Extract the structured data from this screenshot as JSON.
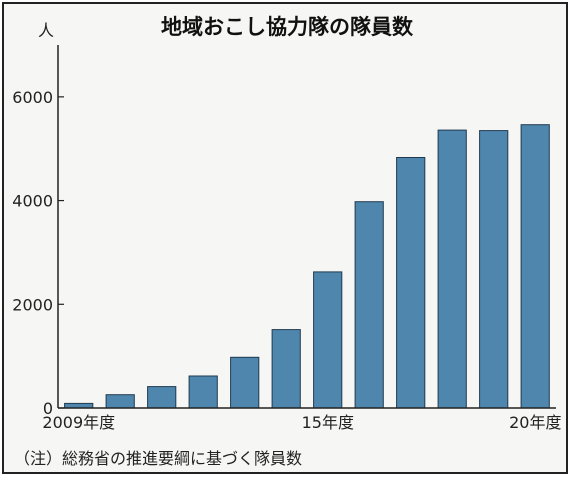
{
  "chart_data": {
    "type": "bar",
    "title": "地域おこし協力隊の隊員数",
    "unit_label": "人",
    "categories": [
      "2009",
      "2010",
      "2011",
      "2012",
      "2013",
      "2014",
      "2015",
      "2016",
      "2017",
      "2018",
      "2019",
      "2020"
    ],
    "x_tick_labels": [
      {
        "category_index": 0,
        "label": "2009年度"
      },
      {
        "category_index": 6,
        "label": "15年度"
      },
      {
        "category_index": 11,
        "label": "20年度"
      }
    ],
    "values": [
      89,
      257,
      413,
      617,
      978,
      1511,
      2625,
      3978,
      4830,
      5359,
      5349,
      5464
    ],
    "ylim": [
      0,
      7000
    ],
    "y_ticks": [
      0,
      2000,
      4000,
      6000
    ],
    "grid": false,
    "bar_color": "#4f86ad",
    "source": "（注）総務省の推進要綱に基づく隊員数"
  }
}
